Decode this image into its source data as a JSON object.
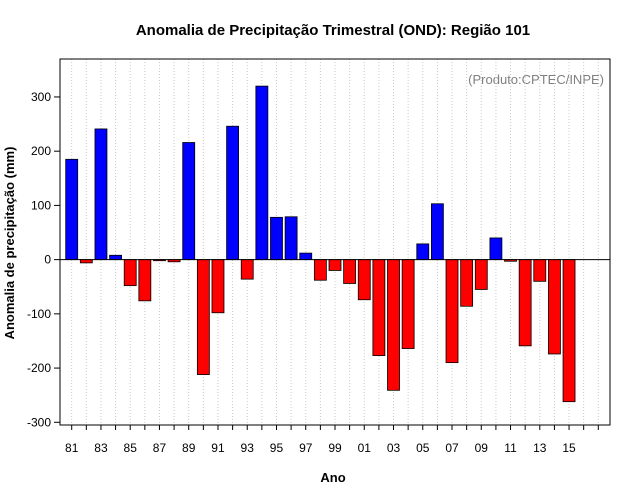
{
  "chart_data": {
    "type": "bar",
    "title": "Anomalia de Precipitação Trimestral (OND): Região 101",
    "xlabel": "Ano",
    "ylabel": "Anomalia de precipitação (mm)",
    "credit": "(Produto:CPTEC/INPE)",
    "ylim": [
      -305,
      370
    ],
    "yticks": [
      -300,
      -200,
      -100,
      0,
      100,
      200,
      300
    ],
    "ytick_labels": [
      "-300",
      "-200",
      "-100",
      "0",
      "100",
      "200",
      "300"
    ],
    "xlim": [
      1980.2,
      2017.8
    ],
    "xtick_years": [
      1981,
      1983,
      1985,
      1987,
      1989,
      1991,
      1993,
      1995,
      1997,
      1999,
      2001,
      2003,
      2005,
      2007,
      2009,
      2011,
      2013,
      2015
    ],
    "xtick_labels": [
      "81",
      "83",
      "85",
      "87",
      "89",
      "91",
      "93",
      "95",
      "97",
      "99",
      "01",
      "03",
      "05",
      "07",
      "09",
      "11",
      "13",
      "15"
    ],
    "grid": true,
    "colors": {
      "positive": "#0000ff",
      "negative": "#ff0000",
      "grid": "#c8c8c8",
      "zero_line": "#000000"
    },
    "years": [
      1981,
      1982,
      1983,
      1984,
      1985,
      1986,
      1987,
      1988,
      1989,
      1990,
      1991,
      1992,
      1993,
      1994,
      1995,
      1996,
      1997,
      1998,
      1999,
      2000,
      2001,
      2002,
      2003,
      2004,
      2005,
      2006,
      2007,
      2008,
      2009,
      2010,
      2011,
      2012,
      2013,
      2014,
      2015
    ],
    "values": [
      185,
      -6,
      241,
      8,
      -48,
      -76,
      -2,
      -4,
      216,
      -212,
      -98,
      246,
      -36,
      320,
      78,
      79,
      12,
      -38,
      -20,
      -44,
      -74,
      -177,
      -241,
      -164,
      29,
      103,
      -190,
      -86,
      -55,
      40,
      -3,
      -159,
      -40,
      -174,
      -262
    ]
  }
}
